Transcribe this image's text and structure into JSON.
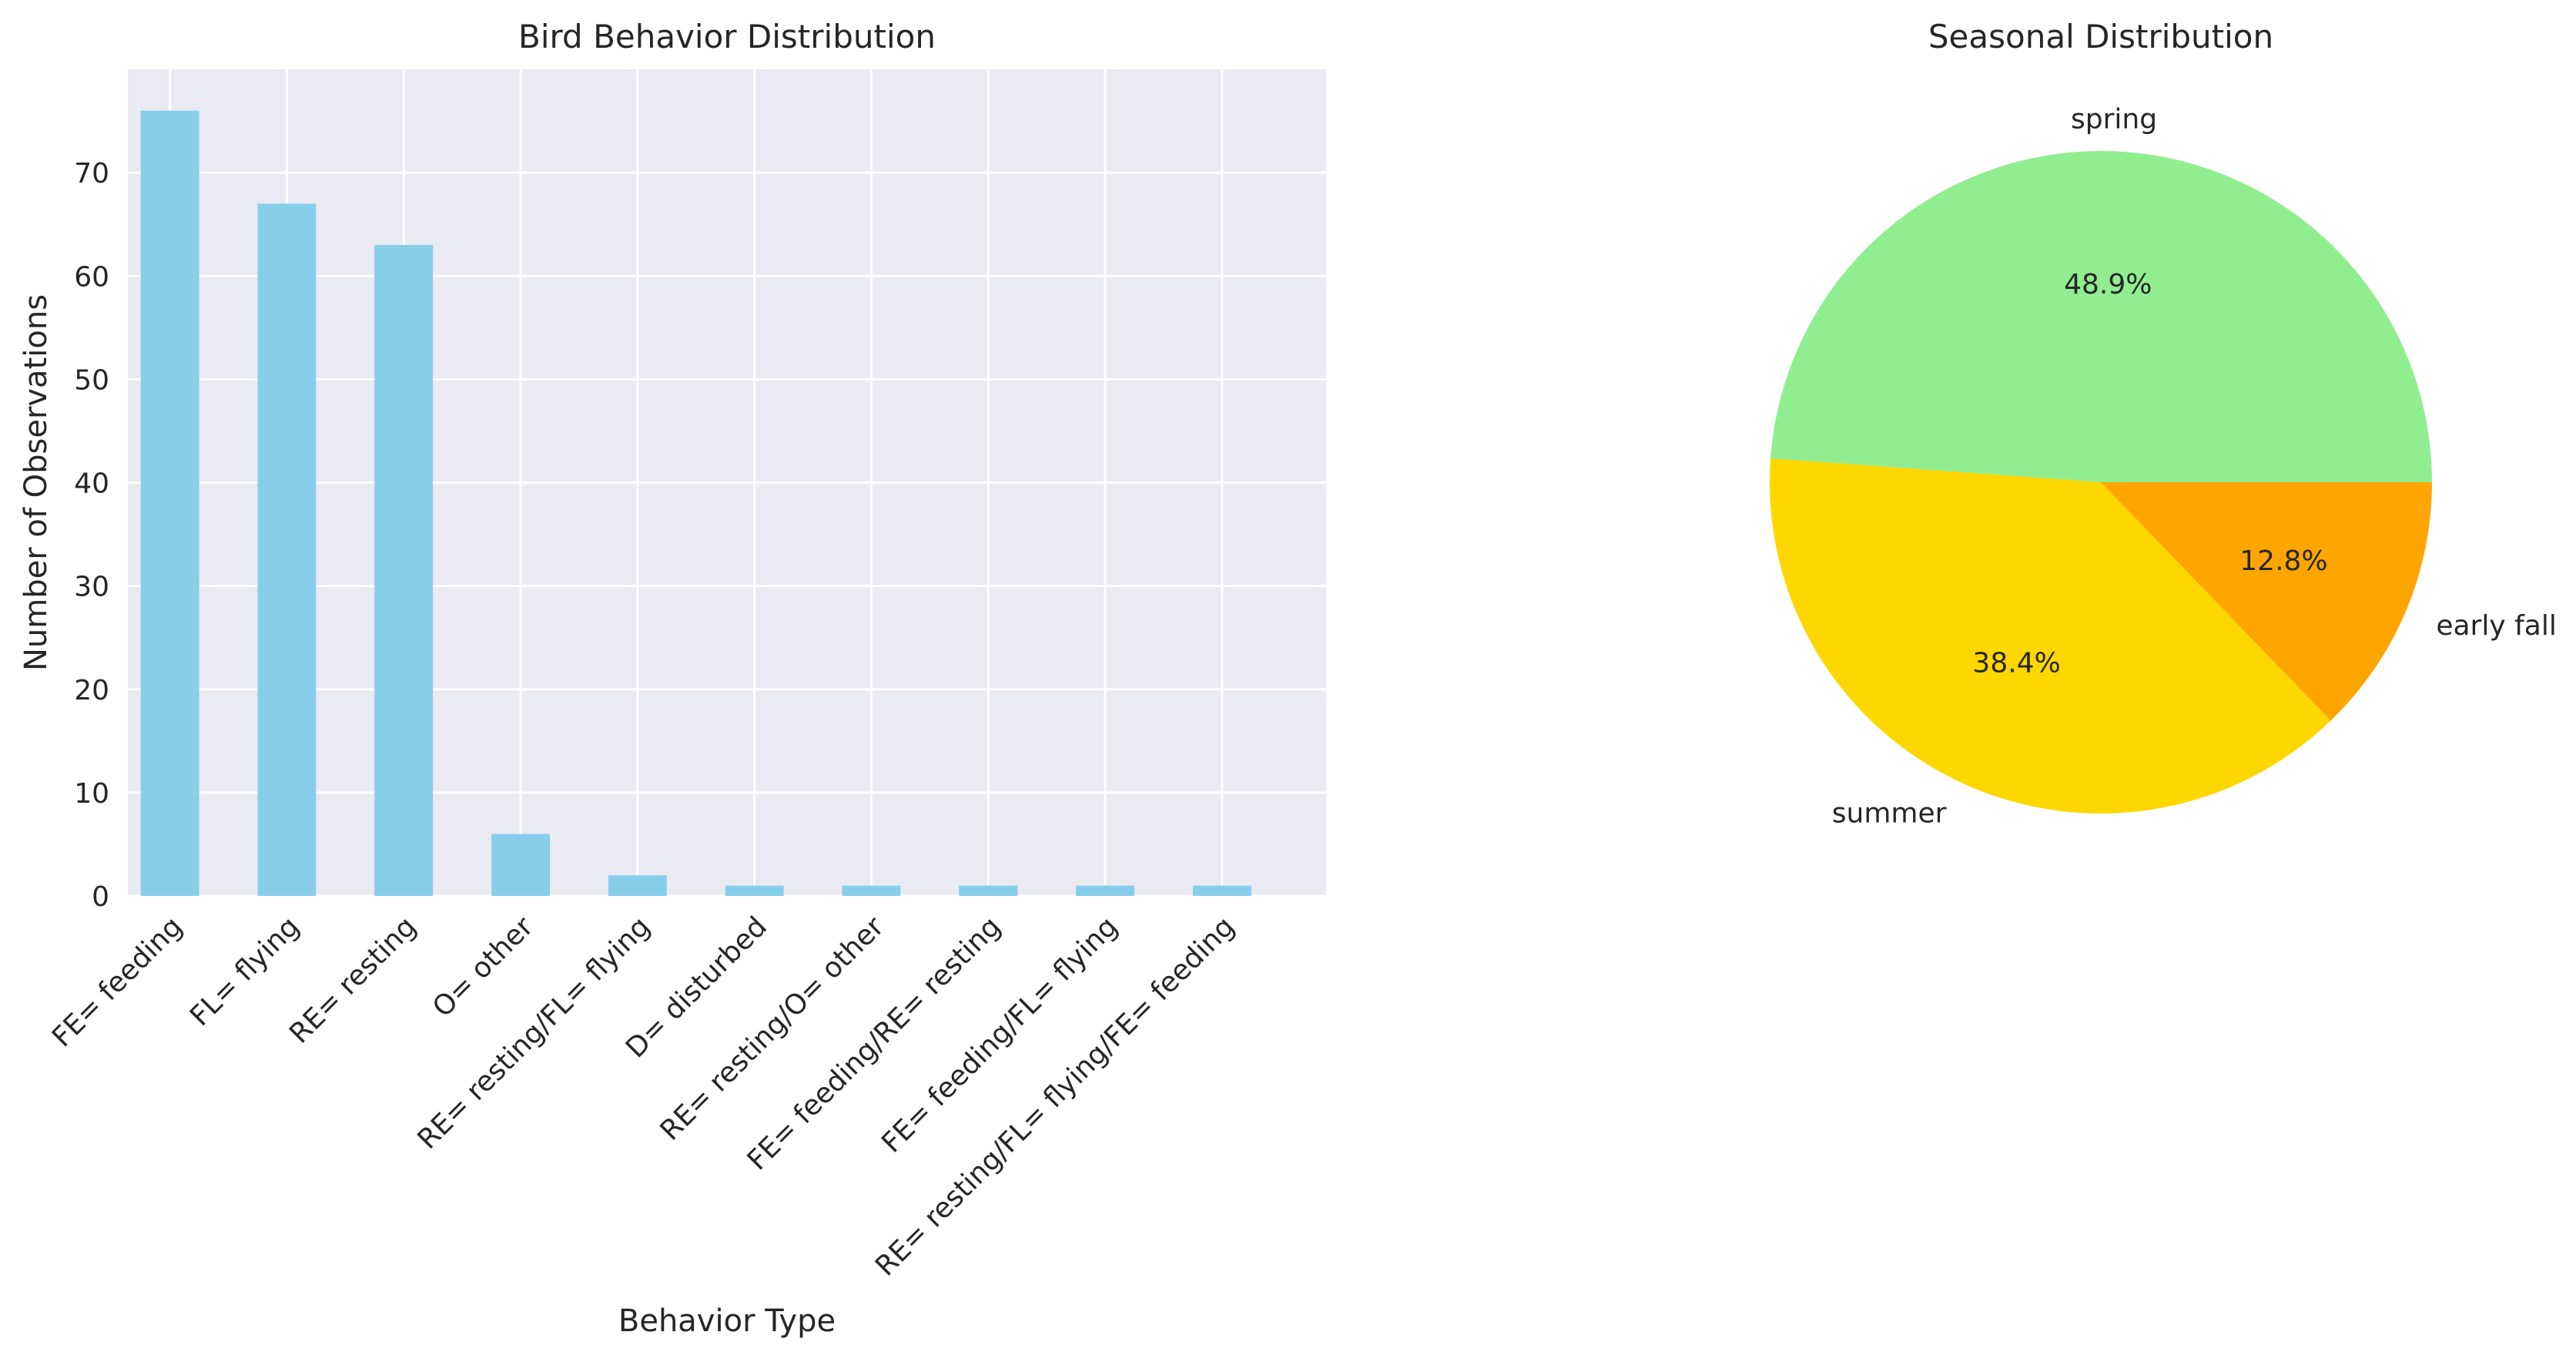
{
  "chart_data": [
    {
      "type": "bar",
      "title": "Bird Behavior Distribution",
      "xlabel": "Behavior Type",
      "ylabel": "Number of Observations",
      "categories": [
        "FE= feeding",
        "FL= flying",
        "RE= resting",
        "O= other",
        "RE= resting/FL= flying",
        "D= disturbed",
        "RE= resting/O= other",
        "FE= feeding/RE= resting",
        "FE= feeding/FL= flying",
        "RE= resting/FL= flying/FE= feeding"
      ],
      "values": [
        76,
        67,
        63,
        6,
        2,
        1,
        1,
        1,
        1,
        1
      ],
      "ylim": [
        0,
        80
      ],
      "yticks": [
        0,
        10,
        20,
        30,
        40,
        50,
        60,
        70
      ],
      "grid": true,
      "colors": {
        "bar": "#87CEEB",
        "background": "#EAEAF2",
        "grid": "#FFFFFF"
      }
    },
    {
      "type": "pie",
      "title": "Seasonal Distribution",
      "labels": [
        "spring",
        "summer",
        "early fall"
      ],
      "values": [
        48.9,
        38.4,
        12.8
      ],
      "pct_labels": [
        "48.9%",
        "38.4%",
        "12.8%"
      ],
      "colors": [
        "#90EE90",
        "#FFD700",
        "#FFA500"
      ]
    }
  ]
}
